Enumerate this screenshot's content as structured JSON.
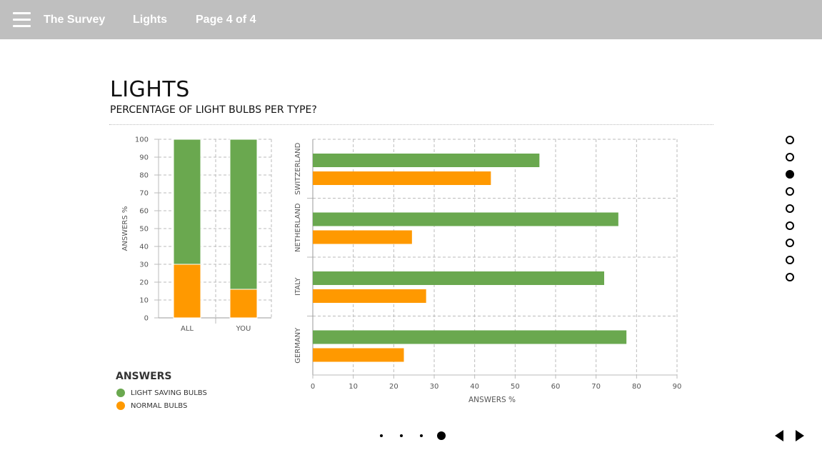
{
  "header": {
    "menu_icon": "hamburger-icon",
    "app_title": "The Survey",
    "section": "Lights",
    "page_indicator": "Page 4 of 4"
  },
  "page": {
    "title": "LIGHTS",
    "subtitle": "PERCENTAGE OF LIGHT BULBS PER TYPE?"
  },
  "colors": {
    "light_saving": "#6aa84f",
    "normal": "#ff9900",
    "grid": "#bbbbbb",
    "axis_text": "#555555"
  },
  "legend": {
    "title": "ANSWERS",
    "items": [
      {
        "label": "LIGHT SAVING BULBS",
        "color": "#6aa84f"
      },
      {
        "label": "NORMAL BULBS",
        "color": "#ff9900"
      }
    ]
  },
  "chart_data": [
    {
      "type": "bar",
      "stacked": true,
      "orientation": "vertical",
      "categories": [
        "ALL",
        "YOU"
      ],
      "series": [
        {
          "name": "NORMAL BULBS",
          "values": [
            30,
            16
          ]
        },
        {
          "name": "LIGHT SAVING BULBS",
          "values": [
            70,
            84
          ]
        }
      ],
      "ylabel": "ANSWERS %",
      "ylim": [
        0,
        100
      ],
      "yticks": [
        0,
        10,
        20,
        30,
        40,
        50,
        60,
        70,
        80,
        90,
        100
      ],
      "grid": true
    },
    {
      "type": "bar",
      "orientation": "horizontal",
      "categories": [
        "SWITZERLAND",
        "NETHERLAND",
        "ITALY",
        "GERMANY"
      ],
      "series": [
        {
          "name": "LIGHT SAVING BULBS",
          "values": [
            56,
            75.5,
            72,
            77.5
          ]
        },
        {
          "name": "NORMAL BULBS",
          "values": [
            44,
            24.5,
            28,
            22.5
          ]
        }
      ],
      "xlabel": "ANSWERS %",
      "xlim": [
        0,
        90
      ],
      "xticks": [
        0,
        10,
        20,
        30,
        40,
        50,
        60,
        70,
        80,
        90
      ],
      "grid": true
    }
  ],
  "side_nav": {
    "count": 9,
    "active_index": 2
  },
  "pager": {
    "count": 4,
    "active_index": 3
  },
  "nav_arrows": {
    "prev_icon": "triangle-left-icon",
    "next_icon": "triangle-right-icon"
  }
}
